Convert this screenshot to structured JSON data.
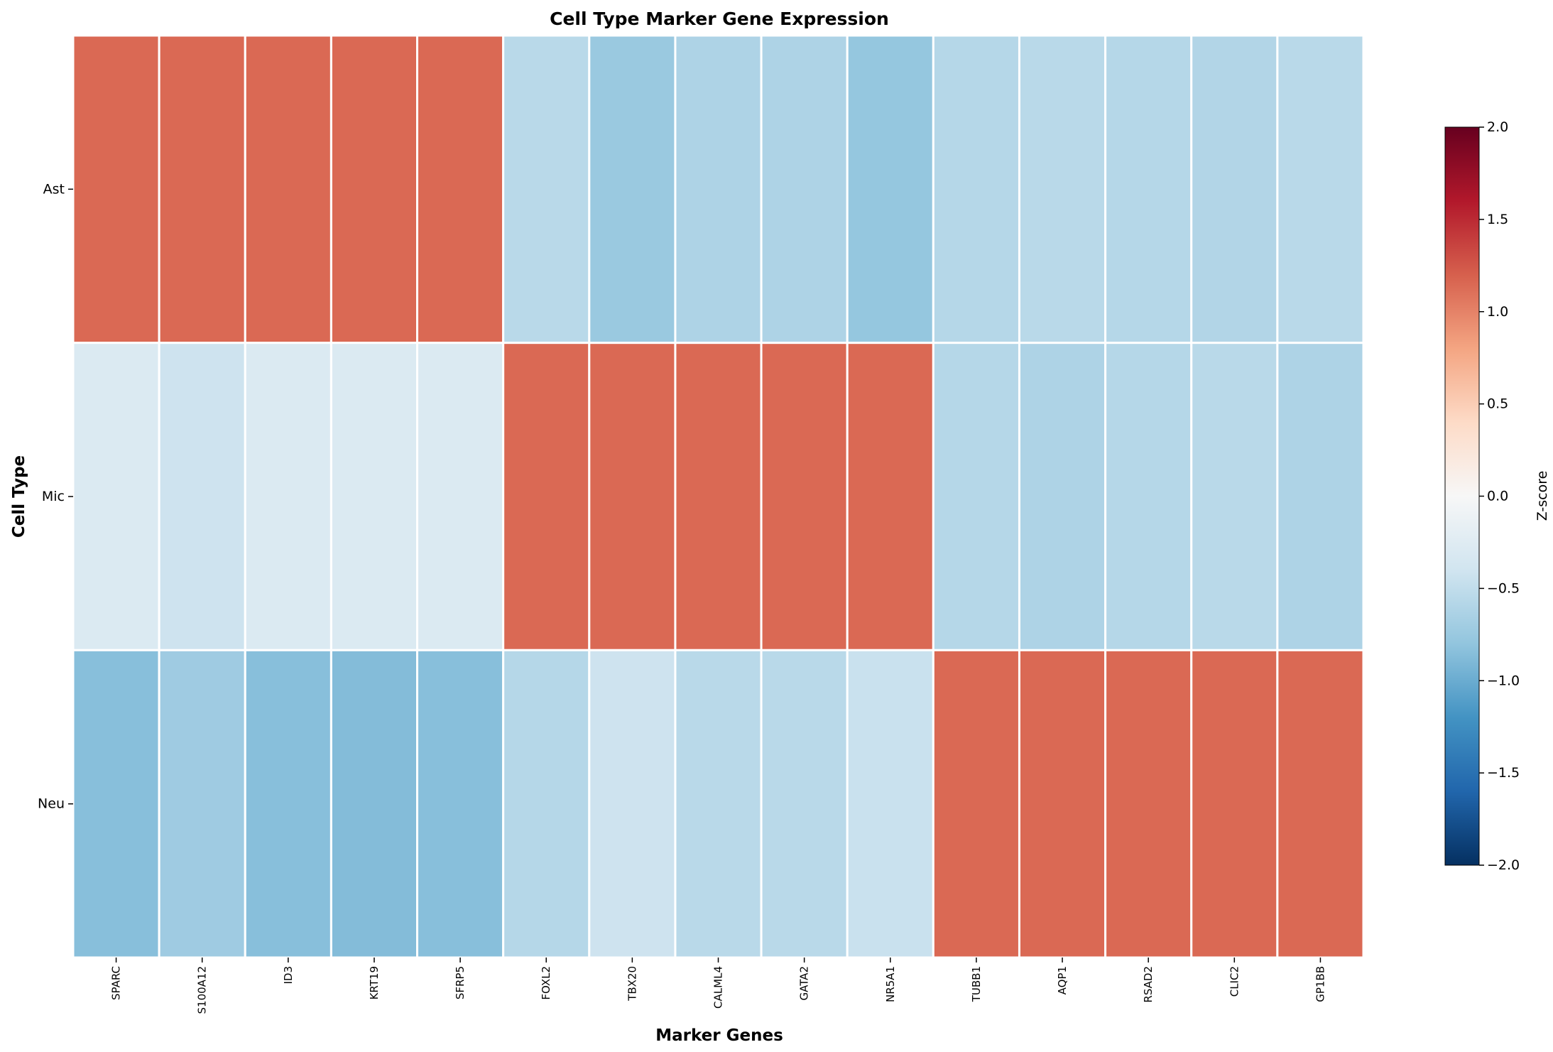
{
  "chart_data": {
    "type": "heatmap",
    "title": "Cell Type Marker Gene Expression",
    "xlabel": "Marker Genes",
    "ylabel": "Cell Type",
    "columns": [
      "SPARC",
      "S100A12",
      "ID3",
      "KRT19",
      "SFRP5",
      "FOXL2",
      "TBX20",
      "CALML4",
      "GATA2",
      "NR5A1",
      "TUBB1",
      "AQP1",
      "RSAD2",
      "CLIC2",
      "GP1BB"
    ],
    "rows": [
      "Ast",
      "Mic",
      "Neu"
    ],
    "values": [
      [
        1.15,
        1.15,
        1.15,
        1.15,
        1.15,
        -0.55,
        -0.75,
        -0.62,
        -0.62,
        -0.78,
        -0.58,
        -0.55,
        -0.58,
        -0.6,
        -0.55
      ],
      [
        -0.3,
        -0.42,
        -0.3,
        -0.3,
        -0.3,
        1.15,
        1.15,
        1.15,
        1.15,
        1.15,
        -0.58,
        -0.62,
        -0.58,
        -0.55,
        -0.62
      ],
      [
        -0.85,
        -0.72,
        -0.85,
        -0.87,
        -0.85,
        -0.58,
        -0.42,
        -0.55,
        -0.55,
        -0.45,
        1.15,
        1.15,
        1.15,
        1.15,
        1.15
      ]
    ],
    "colorbar": {
      "label": "Z-score",
      "vmin": -2.0,
      "vmax": 2.0,
      "ticks": [
        "2.0",
        "1.5",
        "1.0",
        "0.5",
        "0.0",
        "−0.5",
        "−1.0",
        "−1.5",
        "−2.0"
      ],
      "colormap": "RdBu_r",
      "stops": [
        "#053061",
        "#2166ac",
        "#4393c3",
        "#92c5de",
        "#d1e5f0",
        "#f7f7f7",
        "#fddbc7",
        "#f4a582",
        "#d6604d",
        "#b2182b",
        "#67001f"
      ]
    },
    "grid": true
  }
}
